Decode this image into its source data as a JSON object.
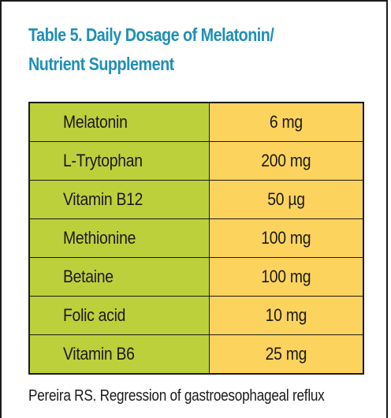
{
  "title": {
    "line1": "Table 5. Daily Dosage of Melatonin/",
    "line2": "Nutrient Supplement"
  },
  "colors": {
    "title": "#1f8fb5",
    "name_column": "#bcd03b",
    "dose_column": "#fcd35c",
    "border": "#1a1a1a"
  },
  "table": {
    "rows": [
      {
        "nutrient": "Melatonin",
        "dose": "6 mg"
      },
      {
        "nutrient": "L-Trytophan",
        "dose": "200 mg"
      },
      {
        "nutrient": "Vitamin B12",
        "dose": "50 µg"
      },
      {
        "nutrient": "Methionine",
        "dose": "100 mg"
      },
      {
        "nutrient": "Betaine",
        "dose": "100 mg"
      },
      {
        "nutrient": "Folic acid",
        "dose": "10 mg"
      },
      {
        "nutrient": "Vitamin B6",
        "dose": "25 mg"
      }
    ]
  },
  "citation": "Pereira RS. Regression of gastroesophageal reflux"
}
